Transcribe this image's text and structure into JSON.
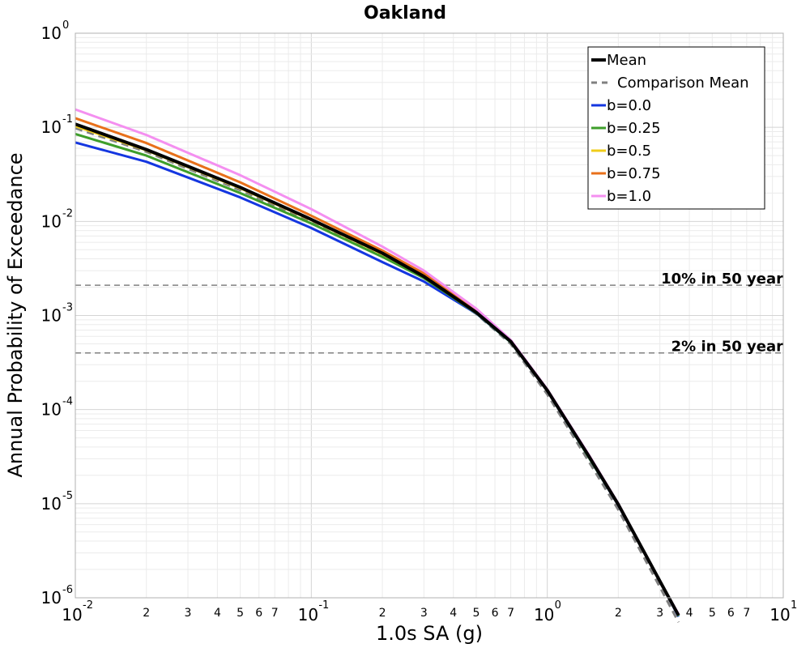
{
  "chart_data": {
    "type": "line",
    "title": "Oakland",
    "xlabel": "1.0s SA (g)",
    "ylabel": "Annual Probability of Exceedance",
    "x_scale": "log",
    "y_scale": "log",
    "xlim": [
      0.01,
      10
    ],
    "ylim": [
      1e-06,
      1
    ],
    "grid": true,
    "legend_position": "top-right",
    "x_major_ticks": [
      {
        "base": "10",
        "exp": "-2",
        "value": 0.01
      },
      {
        "base": "10",
        "exp": "-1",
        "value": 0.1
      },
      {
        "base": "10",
        "exp": "0",
        "value": 1
      },
      {
        "base": "10",
        "exp": "1",
        "value": 10
      }
    ],
    "x_minor_tick_labels": [
      "2",
      "3",
      "4",
      "5",
      "6",
      "7"
    ],
    "y_major_ticks": [
      {
        "base": "10",
        "exp": "0",
        "value": 1
      },
      {
        "base": "10",
        "exp": "-1",
        "value": 0.1
      },
      {
        "base": "10",
        "exp": "-2",
        "value": 0.01
      },
      {
        "base": "10",
        "exp": "-3",
        "value": 0.001
      },
      {
        "base": "10",
        "exp": "-4",
        "value": 0.0001
      },
      {
        "base": "10",
        "exp": "-5",
        "value": 1e-05
      },
      {
        "base": "10",
        "exp": "-6",
        "value": 1e-06
      }
    ],
    "x_sample_points": [
      0.01,
      0.02,
      0.05,
      0.1,
      0.2,
      0.3,
      0.5,
      0.7,
      1.0,
      1.5,
      2.0,
      3.0,
      3.6
    ],
    "series": [
      {
        "name": "Mean",
        "color": "#000000",
        "dashed": false,
        "width": 4,
        "values": [
          0.108,
          0.058,
          0.023,
          0.0105,
          0.0046,
          0.0026,
          0.00108,
          0.00053,
          0.00016,
          3.2e-05,
          9.8e-06,
          1.5e-06,
          6.5e-07
        ]
      },
      {
        "name": "Comparison Mean",
        "color": "#808080",
        "dashed": true,
        "width": 3,
        "values": [
          0.098,
          0.055,
          0.0215,
          0.01,
          0.0044,
          0.0025,
          0.00104,
          0.0005,
          0.000145,
          2.8e-05,
          8.6e-06,
          1.3e-06,
          5.5e-07
        ]
      },
      {
        "name": "b=0.0",
        "color": "#1436e0",
        "dashed": false,
        "width": 3,
        "values": [
          0.069,
          0.043,
          0.018,
          0.0085,
          0.0037,
          0.0023,
          0.00105,
          0.00052,
          0.000158,
          3.1e-05,
          9.6e-06,
          1.5e-06,
          6.3e-07
        ]
      },
      {
        "name": "b=0.25",
        "color": "#3e9e2a",
        "dashed": false,
        "width": 3,
        "values": [
          0.085,
          0.05,
          0.02,
          0.0095,
          0.0042,
          0.0025,
          0.00106,
          0.00052,
          0.000159,
          3.1e-05,
          9.7e-06,
          1.5e-06,
          6.4e-07
        ]
      },
      {
        "name": "b=0.5",
        "color": "#f0cc1a",
        "dashed": false,
        "width": 3,
        "values": [
          0.103,
          0.057,
          0.0225,
          0.0103,
          0.0045,
          0.0026,
          0.00107,
          0.00053,
          0.00016,
          3.2e-05,
          9.8e-06,
          1.5e-06,
          6.5e-07
        ]
      },
      {
        "name": "b=0.75",
        "color": "#e8701a",
        "dashed": false,
        "width": 3,
        "values": [
          0.125,
          0.068,
          0.026,
          0.0115,
          0.0049,
          0.0028,
          0.00112,
          0.00054,
          0.000162,
          3.2e-05,
          9.9e-06,
          1.5e-06,
          6.6e-07
        ]
      },
      {
        "name": "b=1.0",
        "color": "#f48ff0",
        "dashed": false,
        "width": 3,
        "values": [
          0.155,
          0.083,
          0.031,
          0.0135,
          0.0054,
          0.003,
          0.00118,
          0.00055,
          0.000164,
          3.3e-05,
          1e-05,
          1.5e-06,
          6.7e-07
        ]
      }
    ],
    "reference_lines": [
      {
        "label": "10% in 50 year",
        "y": 0.0021,
        "color": "#808080"
      },
      {
        "label": "2% in 50 year",
        "y": 0.0004,
        "color": "#808080"
      }
    ]
  }
}
